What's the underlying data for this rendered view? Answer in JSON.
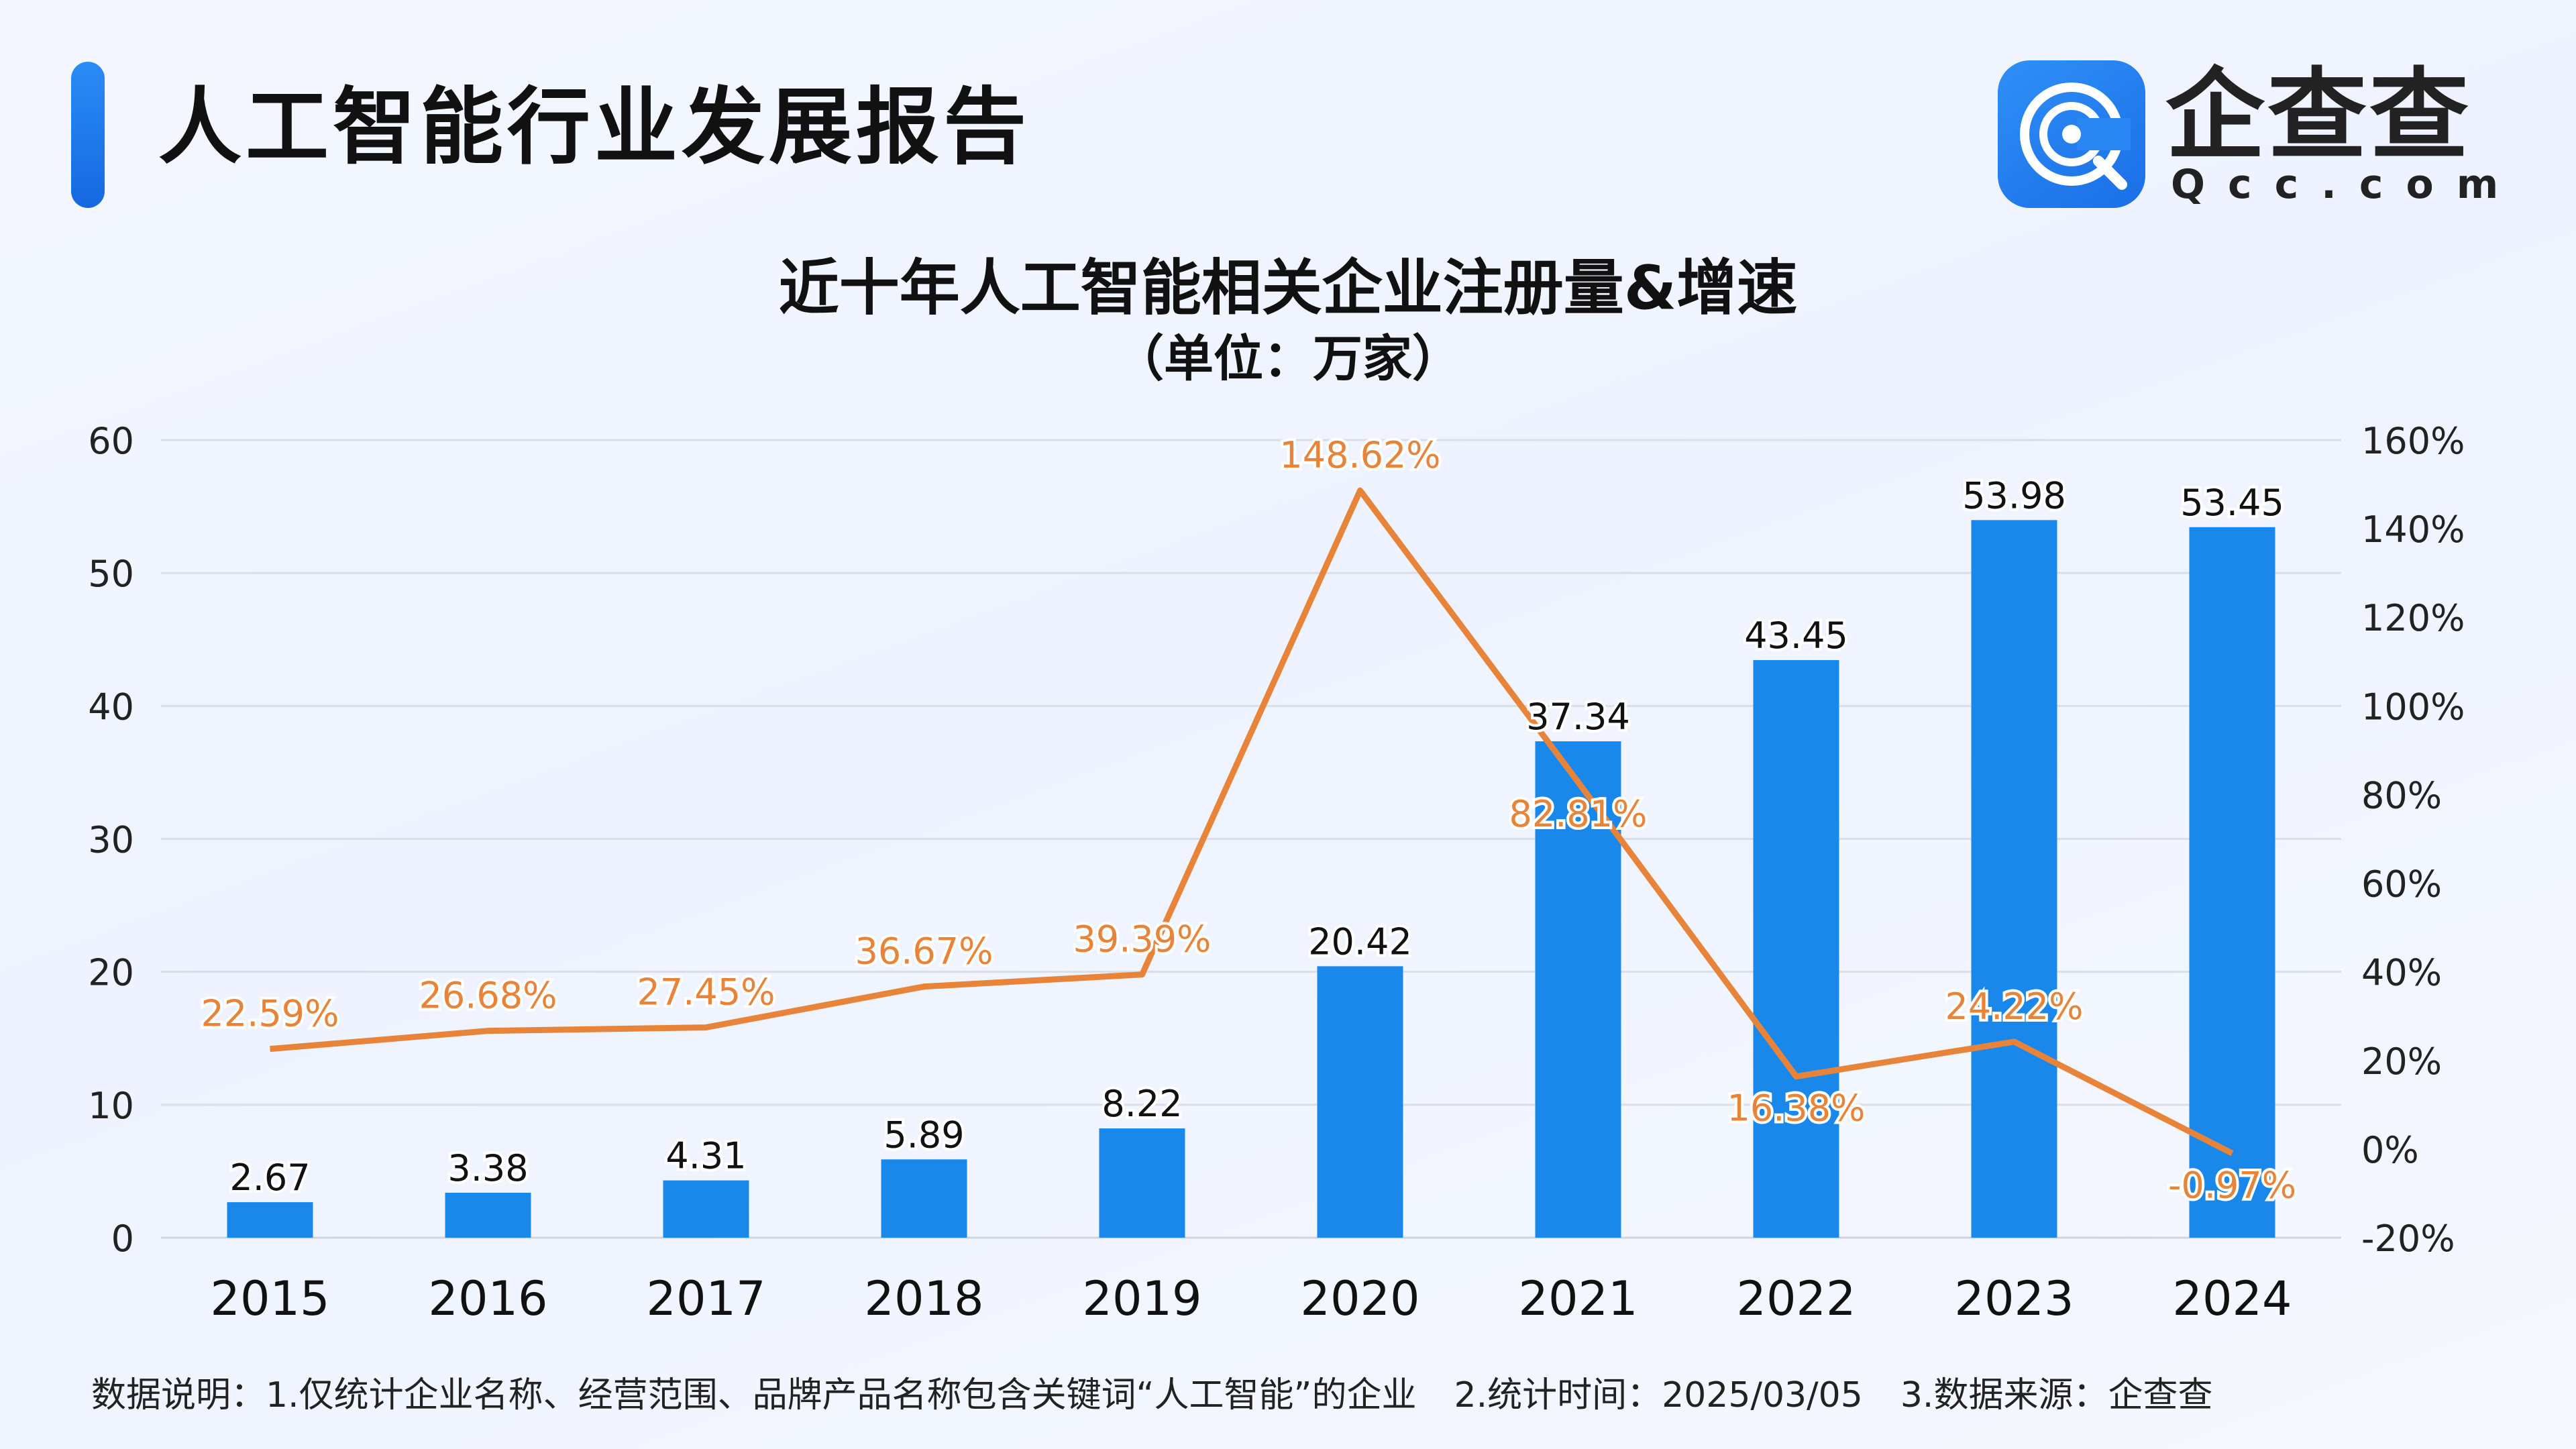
{
  "header": {
    "title": "人工智能行业发展报告",
    "brand_name": "企查查",
    "brand_domain": "Qcc.com",
    "brand_logo_icon": "qcc-logo-icon"
  },
  "chart_title": "近十年人工智能相关企业注册量&增速",
  "chart_subtitle": "（单位：万家）",
  "chart_data": {
    "type": "bar",
    "categories": [
      "2015",
      "2016",
      "2017",
      "2018",
      "2019",
      "2020",
      "2021",
      "2022",
      "2023",
      "2024"
    ],
    "series": [
      {
        "type": "bar",
        "axis": "left",
        "values": [
          2.67,
          3.38,
          4.31,
          5.89,
          8.22,
          20.42,
          37.34,
          43.45,
          53.98,
          53.45
        ],
        "labels": [
          "2.67",
          "3.38",
          "4.31",
          "5.89",
          "8.22",
          "20.42",
          "37.34",
          "43.45",
          "53.98",
          "53.45"
        ],
        "color": "#1a88ea"
      },
      {
        "type": "line",
        "axis": "right",
        "values": [
          22.59,
          26.68,
          27.45,
          36.67,
          39.39,
          148.62,
          82.81,
          16.38,
          24.22,
          -0.97
        ],
        "labels": [
          "22.59%",
          "26.68%",
          "27.45%",
          "36.67%",
          "39.39%",
          "148.62%",
          "82.81%",
          "16.38%",
          "24.22%",
          "-0.97%"
        ],
        "color": "#e8843a"
      }
    ],
    "y_left": {
      "range": [
        0,
        60
      ],
      "ticks": [
        "0",
        "10",
        "20",
        "30",
        "40",
        "50",
        "60"
      ]
    },
    "y_right": {
      "range": [
        -20,
        160
      ],
      "ticks": [
        "-20%",
        "0%",
        "20%",
        "40%",
        "60%",
        "80%",
        "100%",
        "120%",
        "140%",
        "160%"
      ]
    },
    "grid": true,
    "legend": "none"
  },
  "footnote": {
    "note1": "数据说明：1.仅统计企业名称、经营范围、品牌产品名称包含关键词“人工智能”的企业",
    "note2": "2.统计时间：2025/03/05",
    "note3": "3.数据来源：企查查"
  },
  "colors": {
    "bar": "#1a88ea",
    "line": "#e8843a",
    "accent": "#1a6fe6"
  }
}
